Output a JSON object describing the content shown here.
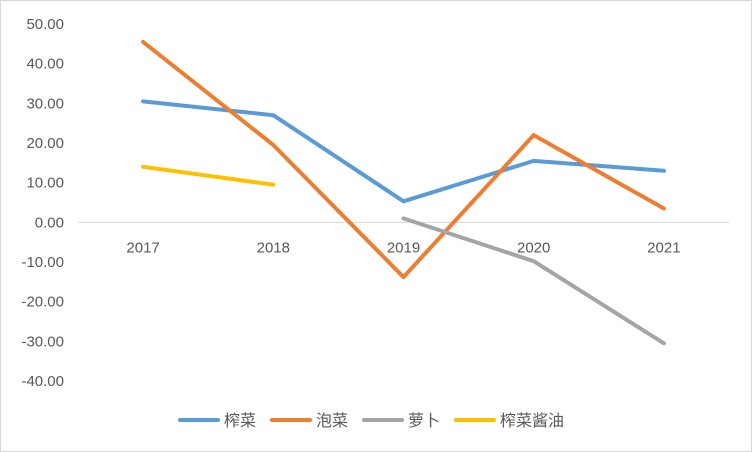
{
  "chart_data": {
    "type": "line",
    "categories": [
      "2017",
      "2018",
      "2019",
      "2020",
      "2021"
    ],
    "ylim": [
      -40,
      50
    ],
    "y_tick_step": 10,
    "y_tick_labels": [
      "50.00",
      "40.00",
      "30.00",
      "20.00",
      "10.00",
      "0.00",
      "-10.00",
      "-20.00",
      "-30.00",
      "-40.00"
    ],
    "grid": false,
    "legend_position": "bottom",
    "series": [
      {
        "name": "榨菜",
        "color": "#5b9bd5",
        "values": [
          30.5,
          27.0,
          5.3,
          15.5,
          13.0
        ]
      },
      {
        "name": "泡菜",
        "color": "#ed7d31",
        "values": [
          45.5,
          19.5,
          -13.8,
          22.0,
          3.5
        ]
      },
      {
        "name": "萝卜",
        "color": "#a5a5a5",
        "values": [
          null,
          null,
          1.0,
          -9.8,
          -30.5
        ]
      },
      {
        "name": "榨菜酱油",
        "color": "#ffc000",
        "values": [
          14.0,
          9.5,
          null,
          null,
          null
        ]
      }
    ]
  }
}
